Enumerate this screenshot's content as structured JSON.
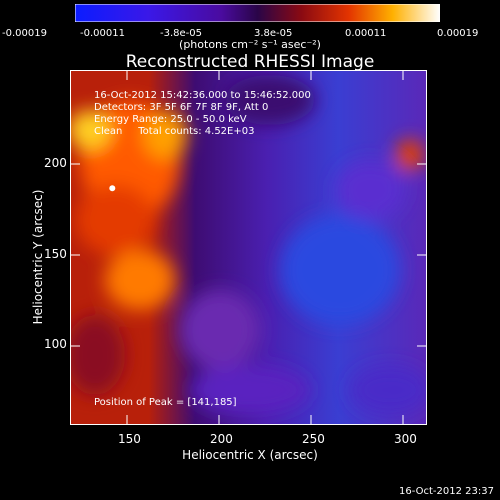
{
  "colorbar": {
    "ticks": [
      "-0.00019",
      "-0.00011",
      "-3.8e-05",
      "3.8e-05",
      "0.00011",
      "0.00019"
    ],
    "units_label": "(photons cm⁻² s⁻¹ asec⁻²)"
  },
  "plot": {
    "title": "Reconstructed RHESSI Image",
    "info_lines": [
      "16-Oct-2012 15:42:36.000 to 15:46:52.000",
      "Detectors: 3F 5F 6F 7F 8F 9F, Att 0",
      "Energy Range: 25.0 - 50.0 keV",
      "Clean     Total counts: 4.52E+03"
    ],
    "peak_label": "Position of Peak = [141,185]",
    "timestamp": "16-Oct-2012 23:37"
  },
  "chart_data": {
    "type": "heatmap",
    "title": "Reconstructed RHESSI Image",
    "xlabel": "Heliocentric X (arcsec)",
    "ylabel": "Heliocentric Y (arcsec)",
    "x_ticks": [
      "150",
      "200",
      "250",
      "300"
    ],
    "y_ticks": [
      "100",
      "150",
      "200"
    ],
    "xlim": [
      118,
      312
    ],
    "ylim": [
      55,
      250
    ],
    "colorbar_range": [
      -0.00019,
      0.00019
    ],
    "colormap": "rhessi-blue-purple-red-yellow-white",
    "peak_position": [
      141,
      185
    ]
  }
}
